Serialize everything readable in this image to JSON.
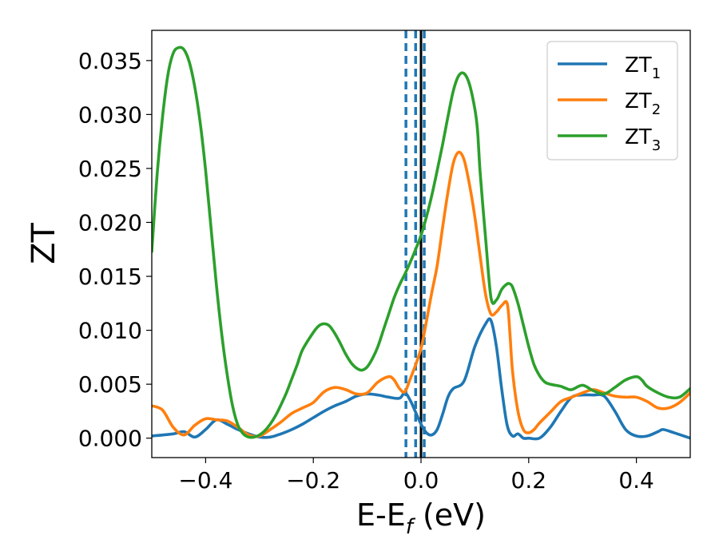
{
  "chart_data": {
    "type": "line",
    "xlabel": {
      "main": "E-E",
      "sub": "f",
      "unit": " (eV)"
    },
    "ylabel": "ZT",
    "xlim": [
      -0.5,
      0.5
    ],
    "ylim": [
      -0.0018,
      0.0378
    ],
    "x_ticks": [
      -0.4,
      -0.2,
      0.0,
      0.2,
      0.4
    ],
    "x_tick_labels": [
      "−0.4",
      "−0.2",
      "0.0",
      "0.2",
      "0.4"
    ],
    "y_ticks": [
      0.0,
      0.005,
      0.01,
      0.015,
      0.02,
      0.025,
      0.03,
      0.035
    ],
    "y_tick_labels": [
      "0.000",
      "0.005",
      "0.010",
      "0.015",
      "0.020",
      "0.025",
      "0.030",
      "0.035"
    ],
    "grid": false,
    "legend_position": "top-right",
    "vertical_lines": [
      {
        "x": -0.028,
        "style": "dashed",
        "color": "#1f77b4"
      },
      {
        "x": -0.01,
        "style": "dashed",
        "color": "#1f77b4"
      },
      {
        "x": 0.006,
        "style": "dashed",
        "color": "#1f77b4"
      },
      {
        "x": 0.0,
        "style": "solid",
        "color": "#000000"
      }
    ],
    "series": [
      {
        "name": "ZT",
        "sub": "1",
        "color": "#1f77b4",
        "x": [
          -0.5,
          -0.46,
          -0.44,
          -0.42,
          -0.4,
          -0.38,
          -0.36,
          -0.34,
          -0.32,
          -0.3,
          -0.28,
          -0.26,
          -0.24,
          -0.22,
          -0.2,
          -0.18,
          -0.16,
          -0.14,
          -0.12,
          -0.1,
          -0.08,
          -0.06,
          -0.04,
          -0.03,
          -0.02,
          -0.01,
          0.0,
          0.01,
          0.02,
          0.03,
          0.04,
          0.05,
          0.06,
          0.08,
          0.1,
          0.12,
          0.13,
          0.14,
          0.15,
          0.16,
          0.17,
          0.18,
          0.19,
          0.2,
          0.22,
          0.24,
          0.26,
          0.28,
          0.3,
          0.32,
          0.34,
          0.36,
          0.38,
          0.4,
          0.42,
          0.44,
          0.45,
          0.47,
          0.5
        ],
        "y": [
          0.0002,
          0.0004,
          0.0006,
          0.0001,
          0.0008,
          0.0017,
          0.0013,
          0.0008,
          0.0004,
          0.0001,
          0.0001,
          0.0004,
          0.0008,
          0.0013,
          0.0019,
          0.0025,
          0.003,
          0.0034,
          0.0039,
          0.0041,
          0.004,
          0.0038,
          0.0037,
          0.0042,
          0.0035,
          0.0024,
          0.0013,
          0.0005,
          0.0003,
          0.0008,
          0.0022,
          0.0038,
          0.0046,
          0.0053,
          0.0085,
          0.0106,
          0.0109,
          0.0085,
          0.0045,
          0.0012,
          0.0002,
          0.0004,
          0.0,
          0.0,
          0.0,
          0.001,
          0.0025,
          0.0038,
          0.004,
          0.004,
          0.0039,
          0.0025,
          0.0008,
          0.0002,
          0.0002,
          0.0006,
          0.0008,
          0.0005,
          0.0
        ]
      },
      {
        "name": "ZT",
        "sub": "2",
        "color": "#ff7f0e",
        "x": [
          -0.5,
          -0.48,
          -0.46,
          -0.44,
          -0.42,
          -0.4,
          -0.38,
          -0.36,
          -0.34,
          -0.32,
          -0.3,
          -0.28,
          -0.26,
          -0.24,
          -0.22,
          -0.2,
          -0.18,
          -0.16,
          -0.14,
          -0.12,
          -0.1,
          -0.08,
          -0.06,
          -0.05,
          -0.04,
          -0.03,
          -0.02,
          -0.01,
          0.0,
          0.005,
          0.01,
          0.02,
          0.03,
          0.04,
          0.05,
          0.06,
          0.07,
          0.08,
          0.09,
          0.1,
          0.11,
          0.12,
          0.13,
          0.14,
          0.15,
          0.16,
          0.165,
          0.17,
          0.18,
          0.19,
          0.2,
          0.21,
          0.22,
          0.24,
          0.26,
          0.28,
          0.3,
          0.32,
          0.34,
          0.36,
          0.38,
          0.4,
          0.42,
          0.44,
          0.46,
          0.48,
          0.5
        ],
        "y": [
          0.003,
          0.0026,
          0.001,
          0.0003,
          0.0012,
          0.0018,
          0.0017,
          0.0016,
          0.001,
          0.0003,
          0.0002,
          0.0008,
          0.0015,
          0.0023,
          0.0028,
          0.0033,
          0.0043,
          0.0047,
          0.0045,
          0.0041,
          0.0042,
          0.0052,
          0.0057,
          0.0054,
          0.0046,
          0.0043,
          0.0055,
          0.0068,
          0.0083,
          0.0095,
          0.0108,
          0.0135,
          0.016,
          0.0195,
          0.0228,
          0.0255,
          0.0265,
          0.0258,
          0.0235,
          0.0205,
          0.0168,
          0.0133,
          0.0115,
          0.0117,
          0.0123,
          0.0125,
          0.0098,
          0.0062,
          0.0025,
          0.0008,
          0.0005,
          0.0008,
          0.0014,
          0.0024,
          0.0034,
          0.0038,
          0.0042,
          0.0045,
          0.0042,
          0.0039,
          0.0038,
          0.0038,
          0.0034,
          0.0028,
          0.0028,
          0.0033,
          0.0042
        ]
      },
      {
        "name": "ZT",
        "sub": "3",
        "color": "#2ca02c",
        "x": [
          -0.5,
          -0.49,
          -0.48,
          -0.47,
          -0.46,
          -0.45,
          -0.44,
          -0.43,
          -0.42,
          -0.41,
          -0.4,
          -0.39,
          -0.38,
          -0.37,
          -0.36,
          -0.35,
          -0.34,
          -0.33,
          -0.32,
          -0.31,
          -0.3,
          -0.29,
          -0.28,
          -0.27,
          -0.26,
          -0.25,
          -0.24,
          -0.23,
          -0.22,
          -0.2,
          -0.19,
          -0.18,
          -0.17,
          -0.16,
          -0.15,
          -0.14,
          -0.13,
          -0.12,
          -0.11,
          -0.1,
          -0.09,
          -0.08,
          -0.07,
          -0.06,
          -0.05,
          -0.04,
          -0.03,
          -0.02,
          -0.01,
          0.0,
          0.01,
          0.02,
          0.03,
          0.04,
          0.05,
          0.06,
          0.07,
          0.08,
          0.09,
          0.1,
          0.105,
          0.11,
          0.12,
          0.13,
          0.14,
          0.15,
          0.16,
          0.165,
          0.17,
          0.18,
          0.19,
          0.2,
          0.21,
          0.22,
          0.23,
          0.24,
          0.25,
          0.26,
          0.27,
          0.28,
          0.3,
          0.32,
          0.34,
          0.36,
          0.38,
          0.4,
          0.41,
          0.42,
          0.44,
          0.46,
          0.48,
          0.5
        ],
        "y": [
          0.0173,
          0.0245,
          0.0298,
          0.0337,
          0.0357,
          0.0362,
          0.036,
          0.0348,
          0.0325,
          0.0292,
          0.0248,
          0.0195,
          0.0142,
          0.0096,
          0.0059,
          0.003,
          0.0012,
          0.0004,
          0.0001,
          0.0001,
          0.0003,
          0.0007,
          0.0013,
          0.0021,
          0.0031,
          0.0042,
          0.0055,
          0.0068,
          0.0082,
          0.0098,
          0.0104,
          0.0106,
          0.0104,
          0.0097,
          0.0088,
          0.0078,
          0.007,
          0.0065,
          0.0063,
          0.0066,
          0.0074,
          0.0085,
          0.01,
          0.0115,
          0.013,
          0.0142,
          0.0152,
          0.0163,
          0.0175,
          0.0188,
          0.0205,
          0.0225,
          0.0248,
          0.0272,
          0.0298,
          0.0322,
          0.0336,
          0.0338,
          0.0328,
          0.0305,
          0.0285,
          0.0245,
          0.0185,
          0.013,
          0.0128,
          0.0138,
          0.0143,
          0.0143,
          0.014,
          0.0125,
          0.0105,
          0.0085,
          0.0068,
          0.0058,
          0.0052,
          0.005,
          0.0049,
          0.0048,
          0.0046,
          0.0045,
          0.0049,
          0.0044,
          0.0041,
          0.0047,
          0.0054,
          0.0057,
          0.0054,
          0.0048,
          0.0042,
          0.0038,
          0.0038,
          0.0046
        ]
      }
    ]
  }
}
